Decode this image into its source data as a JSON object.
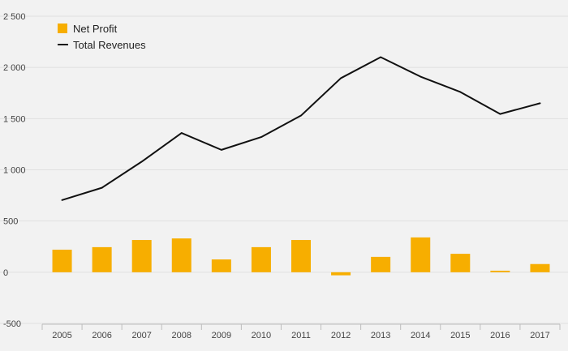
{
  "chart_data": {
    "type": "bar",
    "title": "",
    "xlabel": "",
    "ylabel": "",
    "categories": [
      "2005",
      "2006",
      "2007",
      "2008",
      "2009",
      "2010",
      "2011",
      "2012",
      "2013",
      "2014",
      "2015",
      "2016",
      "2017"
    ],
    "series": [
      {
        "name": "Net Profit",
        "type": "bar",
        "color": "#f7ae00",
        "values": [
          220,
          245,
          315,
          330,
          125,
          245,
          315,
          -30,
          150,
          340,
          180,
          15,
          80
        ]
      },
      {
        "name": "Total Revenues",
        "type": "line",
        "color": "#111111",
        "values": [
          705,
          825,
          1080,
          1360,
          1195,
          1320,
          1530,
          1895,
          2100,
          1910,
          1760,
          1545,
          1650
        ]
      }
    ],
    "ylim": [
      -500,
      2500
    ],
    "y_ticks": [
      -500,
      0,
      500,
      1000,
      1500,
      2000,
      2500
    ],
    "y_tick_labels": [
      "-500",
      "0",
      "500",
      "1 000",
      "1 500",
      "2 000",
      "2 500"
    ],
    "grid": true,
    "legend_position": "top-left"
  },
  "colors": {
    "background": "#f2f2f2",
    "bar": "#f7ae00",
    "line": "#111111",
    "grid": "#e0e0e0"
  }
}
